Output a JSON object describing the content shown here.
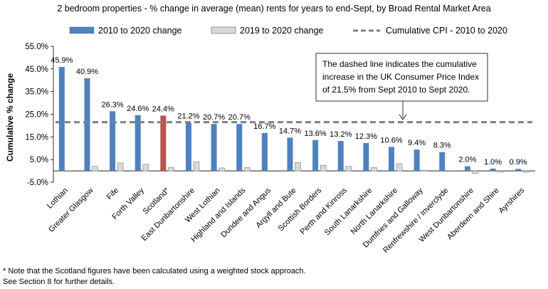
{
  "chart_data": {
    "type": "bar",
    "title": "2 bedroom properties - % change in average (mean) rents for years to end-Sept, by Broad Rental Market Area",
    "ylabel": "Cumulative % change",
    "xlabel": "",
    "ylim": [
      -5,
      55
    ],
    "yticks": [
      -5,
      5,
      15,
      25,
      35,
      45,
      55
    ],
    "ytick_labels": [
      "-5.0%",
      "5.0%",
      "15.0%",
      "25.0%",
      "35.0%",
      "45.0%",
      "55.0%"
    ],
    "categories": [
      "Lothian",
      "Greater Glasgow",
      "Fife",
      "Forth Valley",
      "Scotland*",
      "East Dunbartonshire",
      "West Lothian",
      "Highland and Islands",
      "Dundee and Angus",
      "Argyll and Bute",
      "Scottish Borders",
      "Perth and Kinross",
      "South Lanarkshire",
      "North Lanarkshire",
      "Dumfries and Galloway",
      "Renfrewshire / Inverclyde",
      "West Dunbartonshire",
      "Aberdeen and Shire",
      "Ayrshires"
    ],
    "series": [
      {
        "name": "2010 to 2020 change",
        "values": [
          45.9,
          40.9,
          26.3,
          24.6,
          24.4,
          21.2,
          20.7,
          20.7,
          16.7,
          14.7,
          13.6,
          13.2,
          12.3,
          10.6,
          9.4,
          8.3,
          2.0,
          1.0,
          0.9
        ],
        "labels": [
          "45.9%",
          "40.9%",
          "26.3%",
          "24.6%",
          "24.4%",
          "21.2%",
          "20.7%",
          "20.7%",
          "16.7%",
          "14.7%",
          "13.6%",
          "13.2%",
          "12.3%",
          "10.6%",
          "9.4%",
          "8.3%",
          "2.0%",
          "1.0%",
          "0.9%"
        ],
        "color": "#4f81bd",
        "highlight_index": 4,
        "highlight_color": "#c0504d"
      },
      {
        "name": "2019 to 2020 change",
        "values": [
          -0.3,
          2.0,
          3.5,
          3.0,
          1.5,
          4.0,
          1.3,
          1.5,
          -0.3,
          3.7,
          2.5,
          2.0,
          1.5,
          3.2,
          0.3,
          -0.2,
          -1.2,
          -0.5,
          -0.6
        ],
        "color": "#d9d9d9"
      }
    ],
    "reference_line": {
      "name": "Cumulative CPI - 2010 to 2020",
      "value": 21.5,
      "color": "#808080"
    },
    "annotation": [
      "The dashed line indicates the cumulative",
      "increase in the UK Consumer Price Index",
      "of 21.5% from Sept 2010 to Sept 2020."
    ],
    "footnotes": [
      "* Note that the Scotland figures have been calculated using a weighted stock approach.",
      "See Section 8 for further details."
    ]
  }
}
